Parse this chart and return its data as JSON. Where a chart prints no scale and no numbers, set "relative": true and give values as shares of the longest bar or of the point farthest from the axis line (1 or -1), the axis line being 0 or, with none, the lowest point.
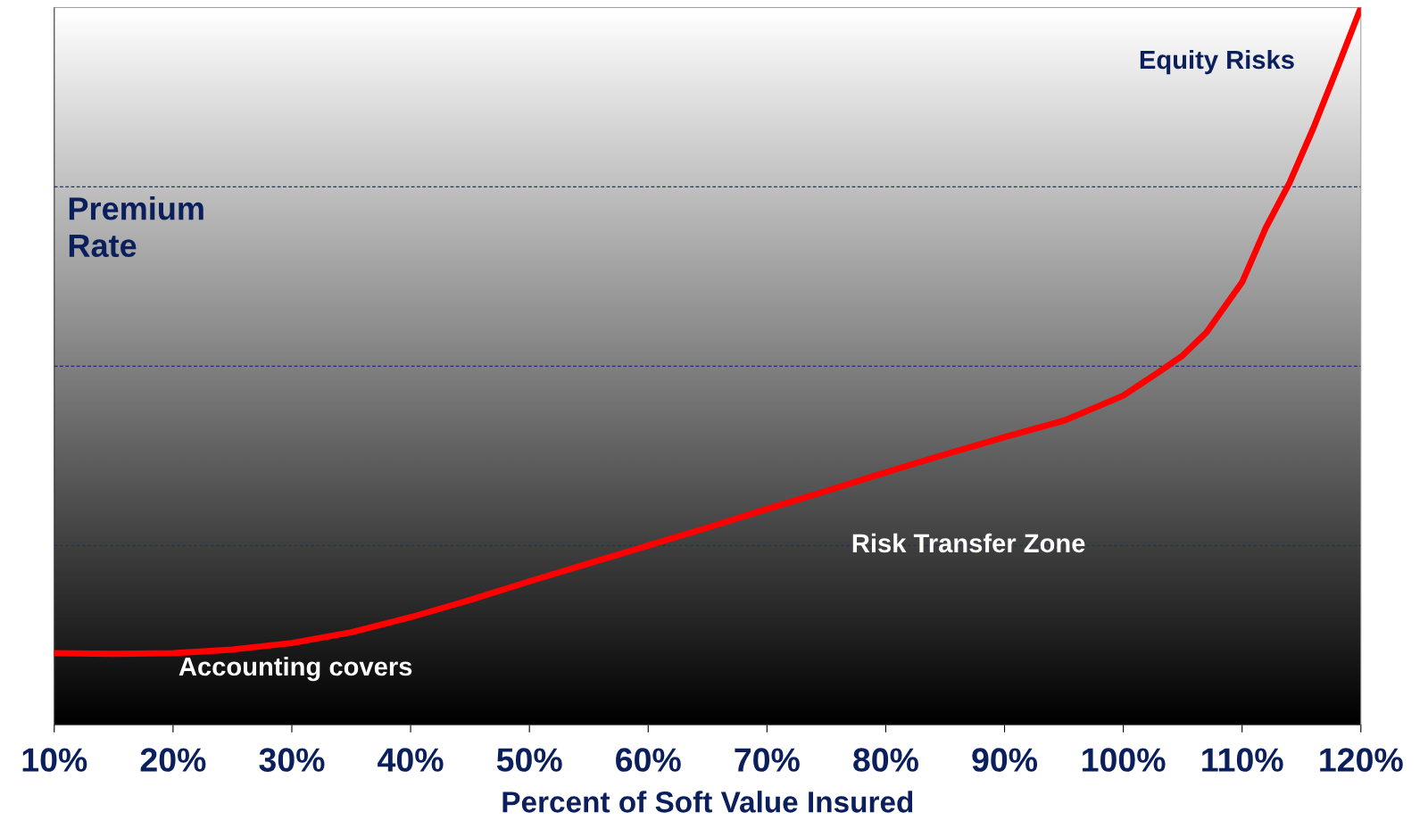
{
  "chart_data": {
    "type": "line",
    "relative": true,
    "xlabel": "Percent of Soft Value Insured",
    "ylabel": "Premium\nRate",
    "x": [
      10,
      15,
      20,
      25,
      30,
      35,
      40,
      45,
      50,
      55,
      60,
      65,
      70,
      75,
      80,
      85,
      90,
      95,
      100,
      103,
      105,
      107,
      110,
      112,
      114,
      116,
      118,
      120
    ],
    "series": [
      {
        "color": "#ff0000",
        "values": [
          0.1,
          0.099,
          0.1,
          0.105,
          0.114,
          0.129,
          0.15,
          0.174,
          0.2,
          0.225,
          0.25,
          0.275,
          0.301,
          0.326,
          0.352,
          0.377,
          0.401,
          0.424,
          0.459,
          0.492,
          0.515,
          0.547,
          0.617,
          0.693,
          0.756,
          0.832,
          0.915,
          1.0
        ]
      }
    ],
    "xlim": [
      10,
      120
    ],
    "xticks": [
      {
        "value": 10,
        "label": "10%"
      },
      {
        "value": 20,
        "label": "20%"
      },
      {
        "value": 30,
        "label": "30%"
      },
      {
        "value": 40,
        "label": "40%"
      },
      {
        "value": 50,
        "label": "50%"
      },
      {
        "value": 60,
        "label": "60%"
      },
      {
        "value": 70,
        "label": "70%"
      },
      {
        "value": 80,
        "label": "80%"
      },
      {
        "value": 90,
        "label": "90%"
      },
      {
        "value": 100,
        "label": "100%"
      },
      {
        "value": 110,
        "label": "110%"
      },
      {
        "value": 120,
        "label": "120%"
      }
    ],
    "ref_lines": [
      {
        "axis": "y",
        "value": 0.25,
        "color": "#1f2f6f",
        "line_style": "dashed"
      },
      {
        "axis": "y",
        "value": 0.5,
        "color": "#1f2f6f",
        "line_style": "dashed"
      },
      {
        "axis": "y",
        "value": 0.75,
        "color": "#1f2f6f",
        "line_style": "dashed"
      }
    ],
    "annotations": [
      "Equity Risks",
      "Risk Transfer Zone",
      "Accounting covers"
    ],
    "marker": "none",
    "line_style": "solid",
    "legend": false,
    "tick_labels": "x"
  }
}
